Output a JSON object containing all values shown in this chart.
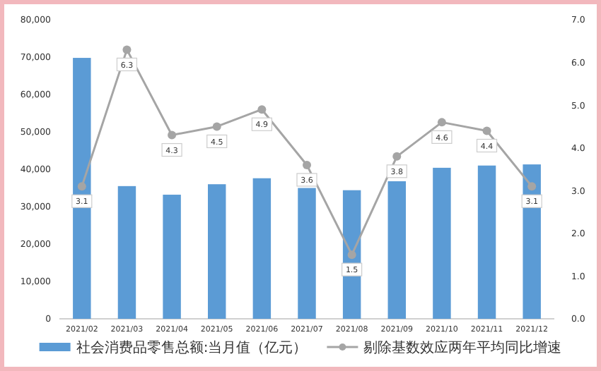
{
  "chart_data": {
    "type": "bar",
    "categories": [
      "2021/02",
      "2021/03",
      "2021/04",
      "2021/05",
      "2021/06",
      "2021/07",
      "2021/08",
      "2021/09",
      "2021/10",
      "2021/11",
      "2021/12"
    ],
    "series": [
      {
        "name": "社会消费品零售总额:当月值（亿元）",
        "color": "#5b9bd5",
        "values": [
          69800,
          35500,
          33200,
          36000,
          37600,
          35000,
          34400,
          36800,
          40400,
          41000,
          41300
        ]
      },
      {
        "name": "剔除基数效应两年平均同比增速",
        "type": "line",
        "axis": "y2",
        "color": "#a5a5a5",
        "marker": "circle",
        "values": [
          3.1,
          6.3,
          4.3,
          4.5,
          4.9,
          3.6,
          1.5,
          3.8,
          4.6,
          4.4,
          3.1
        ],
        "value_labels": [
          "3.1",
          "6.3",
          "4.3",
          "4.5",
          "4.9",
          "3.6",
          "1.5",
          "3.8",
          "4.6",
          "4.4",
          "3.1"
        ]
      }
    ],
    "ylim": [
      0,
      80000
    ],
    "yticks": [
      0,
      {
        "value": 10000,
        "label": "10,000"
      },
      {
        "value": 20000,
        "label": "20,000"
      },
      {
        "value": 30000,
        "label": "30,000"
      },
      {
        "value": 40000,
        "label": "40,000"
      },
      {
        "value": 50000,
        "label": "50,000"
      },
      {
        "value": 60000,
        "label": "60,000"
      },
      {
        "value": 70000,
        "label": "70,000"
      },
      {
        "value": 80000,
        "label": "80,000"
      }
    ],
    "y2lim": [
      0,
      7
    ],
    "y2ticks": [
      {
        "value": 0,
        "label": "0.0"
      },
      {
        "value": 1,
        "label": "1.0"
      },
      {
        "value": 2,
        "label": "2.0"
      },
      {
        "value": 3,
        "label": "3.0"
      },
      {
        "value": 4,
        "label": "4.0"
      },
      {
        "value": 5,
        "label": "5.0"
      },
      {
        "value": 6,
        "label": "6.0"
      },
      {
        "value": 7,
        "label": "7.0"
      }
    ],
    "grid": false,
    "legend": "bottom"
  }
}
